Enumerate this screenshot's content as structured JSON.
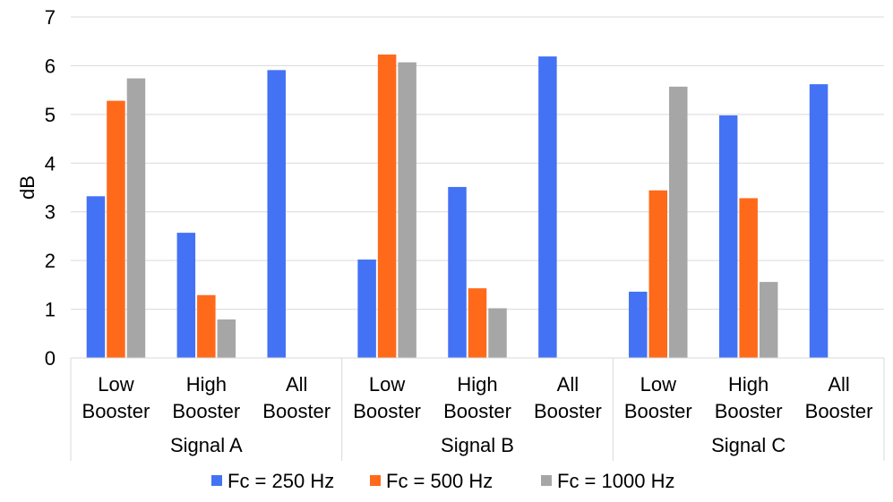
{
  "chart_data": {
    "type": "bar",
    "title": "",
    "ylabel": "dB",
    "xlabel": "",
    "ylim": [
      0,
      7
    ],
    "yticks": [
      0,
      1,
      2,
      3,
      4,
      5,
      6,
      7
    ],
    "grid": true,
    "legend_position": "bottom",
    "groups": [
      {
        "label": "Signal A",
        "categories": [
          [
            "Low",
            "Booster"
          ],
          [
            "High",
            "Booster"
          ],
          [
            "All",
            "Booster"
          ]
        ]
      },
      {
        "label": "Signal B",
        "categories": [
          [
            "Low",
            "Booster"
          ],
          [
            "High",
            "Booster"
          ],
          [
            "All",
            "Booster"
          ]
        ]
      },
      {
        "label": "Signal C",
        "categories": [
          [
            "Low",
            "Booster"
          ],
          [
            "High",
            "Booster"
          ],
          [
            "All",
            "Booster"
          ]
        ]
      }
    ],
    "series": [
      {
        "name": "Fc = 250 Hz",
        "color": "#4472f4",
        "values": [
          3.32,
          2.57,
          5.91,
          2.02,
          3.51,
          6.19,
          1.36,
          4.98,
          5.62
        ]
      },
      {
        "name": "Fc = 500 Hz",
        "color": "#ff6a1a",
        "values": [
          5.28,
          1.29,
          null,
          6.23,
          1.43,
          null,
          3.44,
          3.28,
          null
        ]
      },
      {
        "name": "Fc = 1000 Hz",
        "color": "#a6a6a6",
        "values": [
          5.74,
          0.79,
          null,
          6.07,
          1.02,
          null,
          5.57,
          1.56,
          null
        ]
      }
    ]
  }
}
